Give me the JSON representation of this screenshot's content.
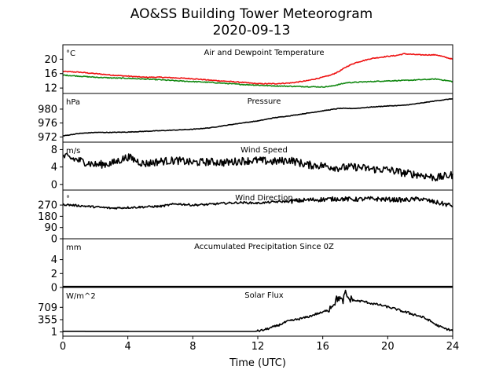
{
  "header": {
    "title_line1": "AO&SS Building Tower Meteorogram",
    "title_line2": "2020-09-13"
  },
  "colors": {
    "temperature": "#ee1111",
    "dewpoint": "#118811",
    "default": "#000000"
  },
  "chart_data": [
    {
      "type": "line",
      "title": "Air and Dewpoint Temperature",
      "ylabel": "°C",
      "ylim": [
        10.5,
        24
      ],
      "yticks": [
        12,
        16,
        20
      ],
      "xlim": [
        0,
        24
      ],
      "grid": false,
      "series": [
        {
          "color": "#ee1111",
          "x": [
            0,
            1,
            2,
            3,
            4,
            5,
            6,
            7,
            8,
            9,
            10,
            11,
            12,
            13,
            14,
            15,
            16,
            16.5,
            17,
            17.5,
            18,
            19,
            20,
            20.5,
            21,
            22,
            23,
            24
          ],
          "y": [
            16.6,
            16.4,
            16.0,
            15.6,
            15.3,
            15.0,
            15.0,
            14.8,
            14.6,
            14.2,
            13.9,
            13.6,
            13.2,
            13.2,
            13.4,
            14.0,
            15.0,
            15.6,
            16.6,
            18.0,
            19.0,
            20.2,
            20.8,
            21.0,
            21.5,
            21.2,
            21.2,
            20.0
          ]
        },
        {
          "color": "#118811",
          "x": [
            0,
            1,
            2,
            3,
            4,
            5,
            6,
            7,
            8,
            9,
            10,
            11,
            12,
            13,
            14,
            15,
            16,
            16.5,
            17,
            17.5,
            18,
            19,
            20,
            21,
            22,
            23,
            24
          ],
          "y": [
            15.6,
            15.3,
            15.0,
            14.8,
            14.7,
            14.5,
            14.3,
            14.0,
            13.8,
            13.6,
            13.3,
            13.0,
            12.8,
            12.6,
            12.5,
            12.4,
            12.3,
            12.5,
            13.0,
            13.5,
            13.6,
            13.8,
            14.0,
            14.1,
            14.3,
            14.5,
            13.8
          ]
        }
      ]
    },
    {
      "type": "line",
      "title": "Pressure",
      "ylabel": "hPa",
      "ylim": [
        970.5,
        984.5
      ],
      "yticks": [
        972,
        976,
        980
      ],
      "xlim": [
        0,
        24
      ],
      "grid": false,
      "series": [
        {
          "x": [
            0,
            1,
            2,
            3,
            4,
            5,
            6,
            7,
            8,
            9,
            10,
            11,
            12,
            13,
            14,
            15,
            16,
            17,
            18,
            19,
            20,
            21,
            22,
            23,
            24
          ],
          "y": [
            972.3,
            973.0,
            973.3,
            973.3,
            973.4,
            973.6,
            973.8,
            974.0,
            974.2,
            974.6,
            975.3,
            976.0,
            976.6,
            977.5,
            978.1,
            978.8,
            979.5,
            980.2,
            980.2,
            980.6,
            980.9,
            981.1,
            981.7,
            982.4,
            983.0
          ]
        }
      ]
    },
    {
      "type": "line",
      "title": "Wind Speed",
      "ylabel": "m/s",
      "ylim": [
        -1.3,
        9.7
      ],
      "yticks": [
        0,
        4,
        8
      ],
      "xlim": [
        0,
        24
      ],
      "grid": false,
      "series": [
        {
          "x": [
            0,
            1,
            2,
            3,
            4,
            5,
            6,
            7,
            8,
            9,
            10,
            11,
            12,
            13,
            14,
            15,
            16,
            17,
            18,
            19,
            20,
            21,
            22,
            23,
            24
          ],
          "y": [
            6.5,
            5.5,
            4.5,
            4.8,
            6.3,
            4.7,
            5.3,
            5.5,
            5.0,
            5.2,
            5.0,
            5.4,
            5.5,
            5.2,
            5.6,
            4.5,
            4.3,
            3.8,
            4.0,
            3.5,
            3.4,
            2.6,
            2.2,
            1.5,
            2.2
          ]
        }
      ]
    },
    {
      "type": "line",
      "title": "Wind Direction",
      "ylabel": "°",
      "ylim": [
        0,
        390
      ],
      "yticks": [
        0,
        90,
        180,
        270
      ],
      "xlim": [
        0,
        24
      ],
      "grid": false,
      "series": [
        {
          "x": [
            0,
            1,
            2,
            3,
            4,
            5,
            6,
            7,
            8,
            9,
            10,
            11,
            12,
            13,
            14,
            15,
            16,
            17,
            18,
            19,
            20,
            21,
            22,
            23,
            24
          ],
          "y": [
            275,
            265,
            255,
            245,
            250,
            255,
            260,
            280,
            270,
            275,
            285,
            290,
            285,
            295,
            300,
            310,
            315,
            320,
            315,
            320,
            315,
            310,
            320,
            290,
            265
          ]
        }
      ]
    },
    {
      "type": "line",
      "title": "Accumulated Precipitation Since 0Z",
      "ylabel": "mm",
      "ylim": [
        0,
        7
      ],
      "yticks": [
        0,
        2,
        4
      ],
      "xlim": [
        0,
        24
      ],
      "grid": false,
      "series": [
        {
          "x": [
            0,
            24
          ],
          "y": [
            0,
            0
          ]
        }
      ]
    },
    {
      "type": "line",
      "title": "Solar Flux",
      "ylabel": "W/m^2",
      "ylim": [
        -120,
        1280
      ],
      "yticks": [
        1,
        355,
        709
      ],
      "xlim": [
        0,
        24
      ],
      "grid": false,
      "series": [
        {
          "x": [
            0,
            6,
            11.8,
            12.3,
            12.8,
            13.3,
            13.8,
            14.3,
            14.8,
            15.2,
            15.6,
            16.0,
            16.4,
            16.8,
            17.0,
            17.2,
            17.4,
            17.6,
            18.0,
            18.5,
            19.0,
            19.5,
            20.0,
            20.5,
            21.0,
            21.5,
            22.0,
            22.5,
            23.0,
            23.5,
            24.0
          ],
          "y": [
            20,
            15,
            15,
            50,
            120,
            200,
            300,
            350,
            400,
            450,
            520,
            560,
            680,
            900,
            1000,
            850,
            1100,
            950,
            900,
            880,
            820,
            780,
            720,
            660,
            580,
            520,
            450,
            350,
            200,
            100,
            40
          ]
        }
      ]
    }
  ],
  "x_axis": {
    "label": "Time (UTC)",
    "ticks": [
      "0",
      "4",
      "8",
      "12",
      "16",
      "20",
      "24"
    ],
    "tick_values": [
      0,
      4,
      8,
      12,
      16,
      20,
      24
    ]
  }
}
